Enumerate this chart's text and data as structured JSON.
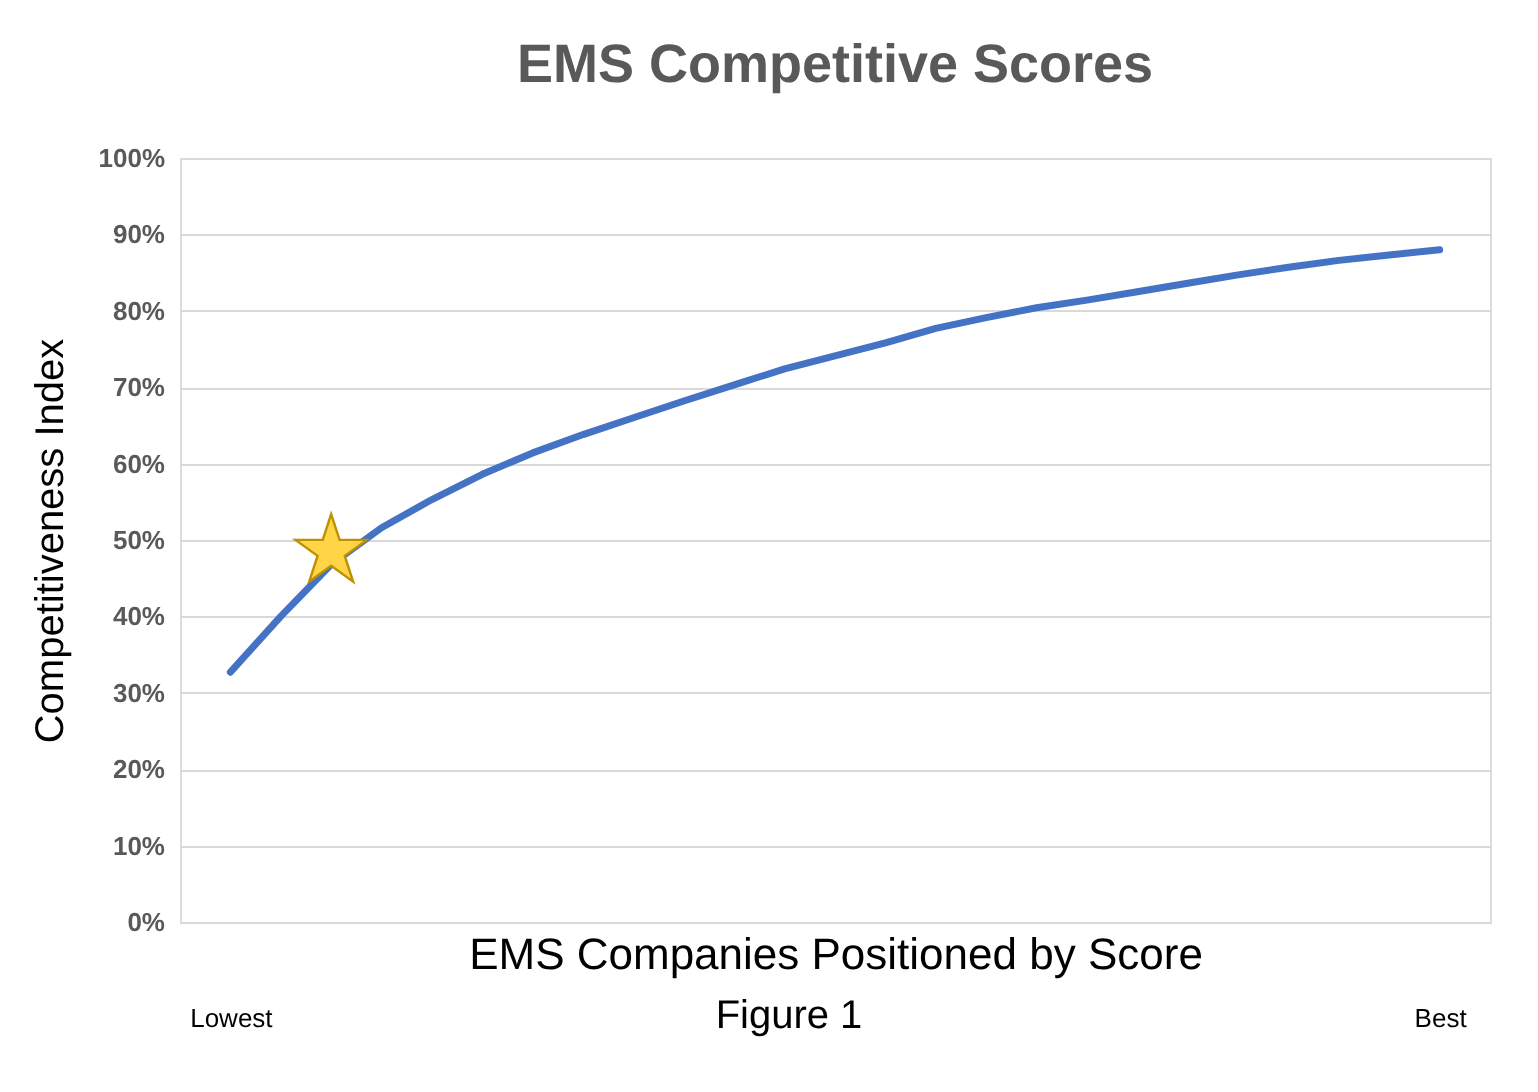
{
  "chart_data": {
    "type": "line",
    "title": "EMS Competitive Scores",
    "xlabel": "EMS Companies Positioned by Score",
    "ylabel": "Competitiveness Index",
    "annotations": [
      "Figure 1"
    ],
    "categories": [
      "Lowest",
      null,
      null,
      null,
      null,
      null,
      null,
      null,
      null,
      null,
      null,
      null,
      null,
      null,
      null,
      null,
      null,
      null,
      null,
      null,
      null,
      null,
      null,
      null,
      "Best"
    ],
    "series": [
      {
        "color": "#4472c4",
        "marker": "none",
        "values": [
          32.7,
          40.0,
          46.8,
          51.6,
          55.3,
          58.6,
          61.4,
          63.8,
          66.0,
          68.2,
          70.3,
          72.4,
          74.1,
          75.8,
          77.7,
          79.1,
          80.4,
          81.4,
          82.5,
          83.6,
          84.7,
          85.7,
          86.6,
          87.3,
          88.0
        ]
      },
      {
        "type": "scatter",
        "color": "#ffd447",
        "marker": "star",
        "values": [
          null,
          null,
          48.5,
          null,
          null,
          null,
          null,
          null,
          null,
          null,
          null,
          null,
          null,
          null,
          null,
          null,
          null,
          null,
          null,
          null,
          null,
          null,
          null,
          null,
          null
        ]
      }
    ],
    "ylim": [
      0,
      100
    ],
    "yticks": [
      {
        "value": 0,
        "label": "0%"
      },
      {
        "value": 10,
        "label": "10%"
      },
      {
        "value": 20,
        "label": "20%"
      },
      {
        "value": 30,
        "label": "30%"
      },
      {
        "value": 40,
        "label": "40%"
      },
      {
        "value": 50,
        "label": "50%"
      },
      {
        "value": 60,
        "label": "60%"
      },
      {
        "value": 70,
        "label": "70%"
      },
      {
        "value": 80,
        "label": "80%"
      },
      {
        "value": 90,
        "label": "90%"
      },
      {
        "value": 100,
        "label": "100%"
      }
    ],
    "grid": "y"
  }
}
